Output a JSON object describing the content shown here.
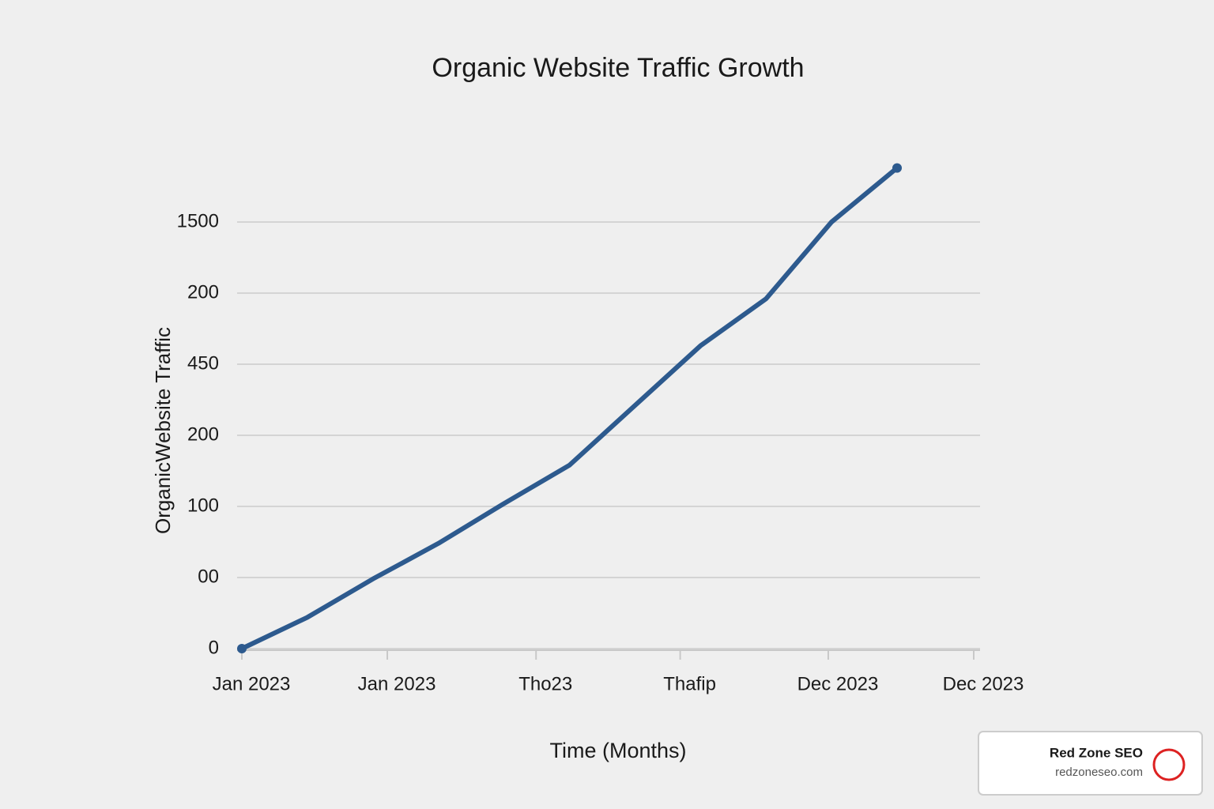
{
  "chart_data": {
    "type": "line",
    "title": "Organic Website Traffic Growth",
    "x_label": "Time (Months)",
    "y_label": "OrganicWebsite Traffic",
    "x": [
      0,
      1,
      2,
      3,
      4,
      5,
      6,
      7,
      8,
      9,
      10
    ],
    "series": [
      {
        "name": "Organic Website Traffic",
        "color": "#2d5a8e",
        "values": [
          0,
          110,
          245,
          370,
          510,
          645,
          855,
          1065,
          1230,
          1500,
          1690
        ]
      }
    ],
    "xlim": [
      0,
      11.17
    ],
    "xticks": [
      {
        "value": 0,
        "label": "Jan 2023"
      },
      {
        "value": 2.22,
        "label": "Jan 2023"
      },
      {
        "value": 4.49,
        "label": "Tho23"
      },
      {
        "value": 6.69,
        "label": "Thafip"
      },
      {
        "value": 8.95,
        "label": "Dec 2023"
      },
      {
        "value": 11.17,
        "label": "Dec 2023"
      }
    ],
    "ylim": [
      0,
      1750
    ],
    "yticks": [
      0,
      {
        "value": 250,
        "label": "00"
      },
      {
        "value": 500,
        "label": "100"
      },
      {
        "value": 750,
        "label": "200"
      },
      {
        "value": 1000,
        "label": "450"
      },
      {
        "value": 1250,
        "label": "200"
      },
      1500
    ],
    "grid": true
  },
  "watermark": {
    "name": "Red Zone SEO",
    "url": "redzoneseo.com"
  }
}
